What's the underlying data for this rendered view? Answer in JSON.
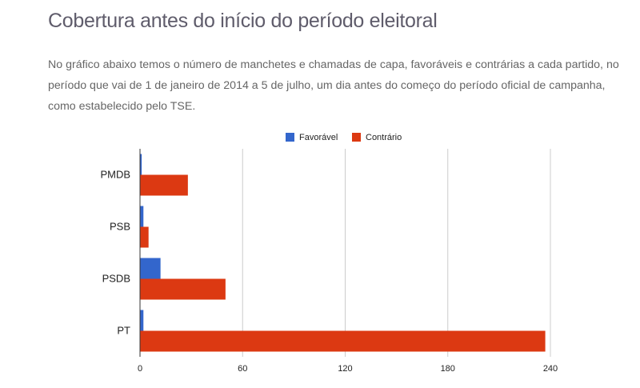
{
  "header": {
    "title": "Cobertura antes do início do período eleitoral",
    "intro": "No gráfico abaixo temos o número de manchetes e chamadas de capa, favoráveis e contrárias a cada partido, no período que vai de 1 de janeiro de 2014 a 5 de julho, um dia antes do começo do período oficial de campanha, como estabelecido pelo TSE."
  },
  "chart_data": {
    "type": "bar",
    "orientation": "horizontal",
    "title": "",
    "xlabel": "",
    "ylabel": "",
    "categories": [
      "PMDB",
      "PSB",
      "PSDB",
      "PT"
    ],
    "series": [
      {
        "name": "Favorável",
        "color": "#3366cc",
        "values": [
          1,
          2,
          12,
          2
        ]
      },
      {
        "name": "Contrário",
        "color": "#dc3912",
        "values": [
          28,
          5,
          50,
          237
        ]
      }
    ],
    "xlim": [
      0,
      240
    ],
    "x_ticks": [
      "0",
      "60",
      "120",
      "180",
      "240"
    ],
    "grid": true,
    "legend": "top"
  }
}
